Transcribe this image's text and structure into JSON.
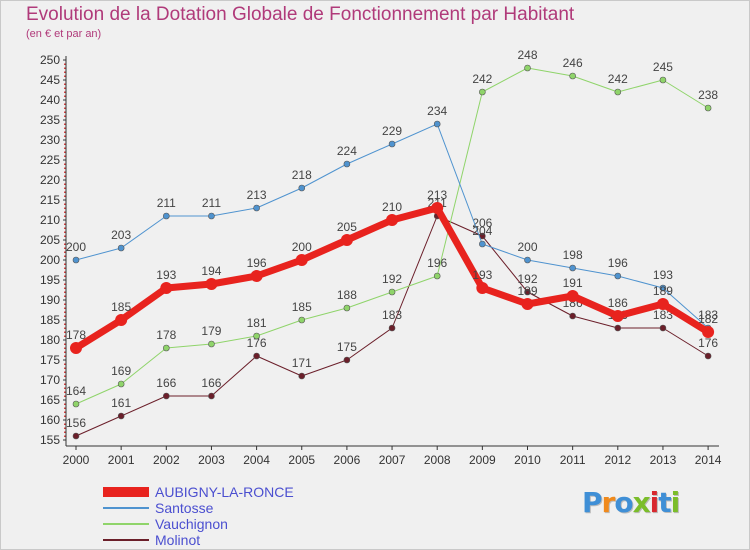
{
  "title": "Evolution de la Dotation Globale de Fonctionnement par Habitant",
  "subtitle": "(en € et par an)",
  "logo": {
    "text": "Proxiti",
    "colors": [
      "#3f8fd6",
      "#f08a1c",
      "#3f8fd6",
      "#7bbd2a",
      "#d8282f",
      "#3f8fd6",
      "#7bbd2a"
    ]
  },
  "chart_data": {
    "type": "line",
    "x": [
      "2000",
      "2001",
      "2002",
      "2003",
      "2004",
      "2005",
      "2006",
      "2007",
      "2008",
      "2009",
      "2010",
      "2011",
      "2012",
      "2013",
      "2014"
    ],
    "ylim": [
      155,
      250
    ],
    "yticks": [
      155,
      160,
      165,
      170,
      175,
      180,
      185,
      190,
      195,
      200,
      205,
      210,
      215,
      220,
      225,
      230,
      235,
      240,
      245,
      250
    ],
    "grid": false,
    "legend_position": "bottom-left",
    "series": [
      {
        "name": "Molinot",
        "color": "#6b1f2a",
        "width": 1,
        "marker": 3,
        "values": [
          156,
          161,
          166,
          166,
          176,
          171,
          175,
          183,
          211,
          206,
          192,
          186,
          183,
          183,
          176
        ]
      },
      {
        "name": "Vauchignon",
        "color": "#8fd46a",
        "width": 1,
        "marker": 3,
        "values": [
          164,
          169,
          178,
          179,
          181,
          185,
          188,
          192,
          196,
          242,
          248,
          246,
          242,
          245,
          238
        ]
      },
      {
        "name": "Santosse",
        "color": "#4f93cf",
        "width": 1,
        "marker": 3,
        "values": [
          200,
          203,
          211,
          211,
          213,
          218,
          224,
          229,
          234,
          204,
          200,
          198,
          196,
          193,
          183
        ]
      },
      {
        "name": "AUBIGNY-LA-RONCE",
        "color": "#e8231e",
        "width": 7,
        "marker": 6,
        "values": [
          178,
          185,
          193,
          194,
          196,
          200,
          205,
          210,
          213,
          193,
          189,
          191,
          186,
          189,
          182
        ]
      }
    ]
  }
}
